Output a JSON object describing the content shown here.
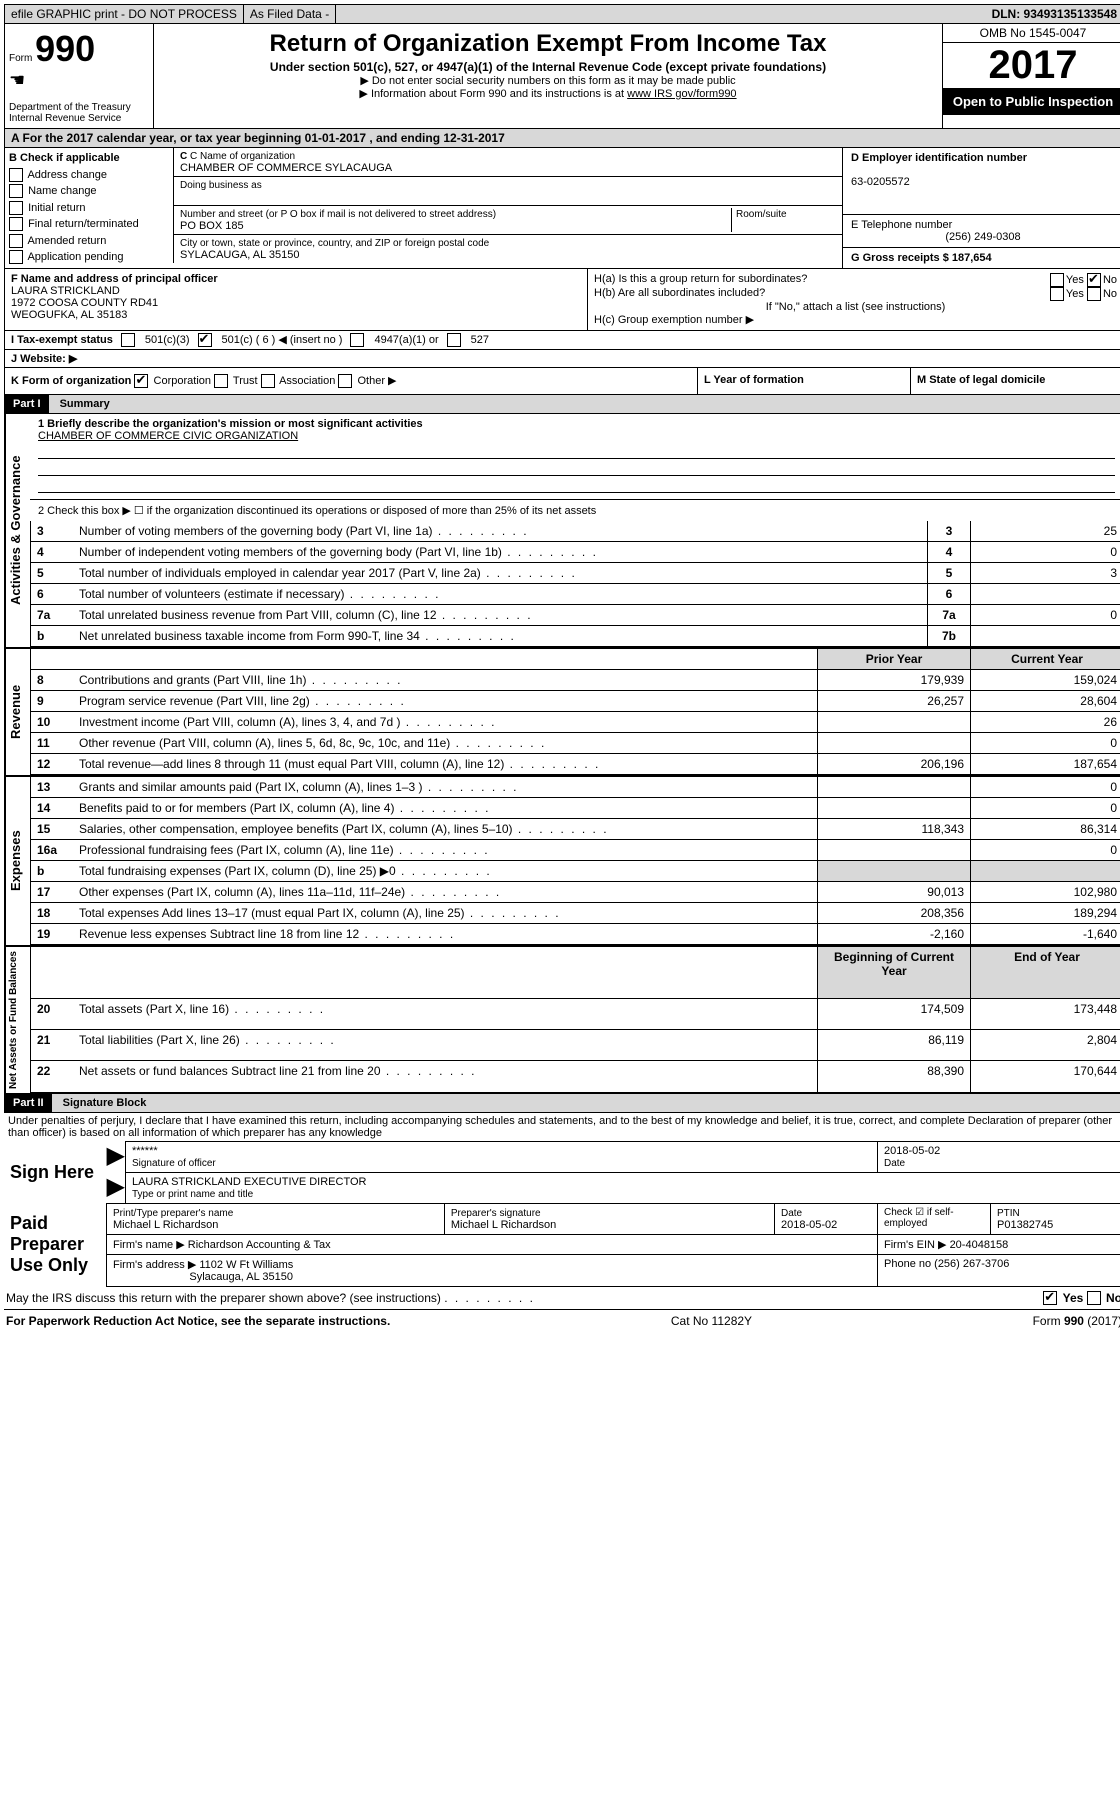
{
  "topbar": {
    "efile": "efile GRAPHIC print - DO NOT PROCESS",
    "asfiled": "As Filed Data -",
    "dln": "DLN: 93493135133548"
  },
  "header": {
    "form_label": "Form",
    "form_number": "990",
    "dept": "Department of the Treasury",
    "irs": "Internal Revenue Service",
    "title": "Return of Organization Exempt From Income Tax",
    "subtitle": "Under section 501(c), 527, or 4947(a)(1) of the Internal Revenue Code (except private foundations)",
    "note1": "▶ Do not enter social security numbers on this form as it may be made public",
    "note2": "▶ Information about Form 990 and its instructions is at ",
    "note2_link": "www IRS gov/form990",
    "omb": "OMB No 1545-0047",
    "year": "2017",
    "open": "Open to Public Inspection"
  },
  "row_a": "A  For the 2017 calendar year, or tax year beginning 01-01-2017  , and ending 12-31-2017",
  "section_b": {
    "b_label": "B Check if applicable",
    "checks": [
      "Address change",
      "Name change",
      "Initial return",
      "Final return/terminated",
      "Amended return",
      "Application pending"
    ],
    "c_label": "C Name of organization",
    "c_name": "CHAMBER OF COMMERCE SYLACAUGA",
    "dba_label": "Doing business as",
    "addr_label": "Number and street (or P O  box if mail is not delivered to street address)",
    "room_label": "Room/suite",
    "addr": "PO BOX 185",
    "city_label": "City or town, state or province, country, and ZIP or foreign postal code",
    "city": "SYLACAUGA, AL  35150",
    "d_label": "D Employer identification number",
    "d_val": "63-0205572",
    "e_label": "E Telephone number",
    "e_val": "(256) 249-0308",
    "g_label": "G Gross receipts $ 187,654"
  },
  "section_f": {
    "f_label": "F  Name and address of principal officer",
    "f_name": "LAURA STRICKLAND",
    "f_addr1": "1972 COOSA COUNTY RD41",
    "f_addr2": "WEOGUFKA, AL  35183",
    "ha": "H(a)  Is this a group return for subordinates?",
    "hb": "H(b)  Are all subordinates included?",
    "hb_note": "If \"No,\" attach a list  (see instructions)",
    "hc": "H(c)  Group exemption number ▶"
  },
  "row_i": {
    "label": "I  Tax-exempt status",
    "opt1": "501(c)(3)",
    "opt2": "501(c) ( 6 ) ◀ (insert no )",
    "opt3": "4947(a)(1) or",
    "opt4": "527"
  },
  "row_j": "J  Website: ▶",
  "row_k": {
    "k_label": "K Form of organization",
    "opts": [
      "Corporation",
      "Trust",
      "Association",
      "Other ▶"
    ],
    "l_label": "L Year of formation",
    "m_label": "M State of legal domicile"
  },
  "part1": {
    "header": "Part I",
    "title": "Summary",
    "line1_label": "1 Briefly describe the organization's mission or most significant activities",
    "line1_val": "CHAMBER OF COMMERCE CIVIC ORGANIZATION",
    "line2": "2  Check this box ▶ ☐ if the organization discontinued its operations or disposed of more than 25% of its net assets",
    "vert1": "Activities & Governance",
    "vert2": "Revenue",
    "vert3": "Expenses",
    "vert4": "Net Assets or Fund Balances",
    "prior_year": "Prior Year",
    "current_year": "Current Year",
    "begin_year": "Beginning of Current Year",
    "end_year": "End of Year",
    "rows_gov": [
      {
        "n": "3",
        "t": "Number of voting members of the governing body (Part VI, line 1a)",
        "box": "3",
        "v": "25"
      },
      {
        "n": "4",
        "t": "Number of independent voting members of the governing body (Part VI, line 1b)",
        "box": "4",
        "v": "0"
      },
      {
        "n": "5",
        "t": "Total number of individuals employed in calendar year 2017 (Part V, line 2a)",
        "box": "5",
        "v": "3"
      },
      {
        "n": "6",
        "t": "Total number of volunteers (estimate if necessary)",
        "box": "6",
        "v": ""
      },
      {
        "n": "7a",
        "t": "Total unrelated business revenue from Part VIII, column (C), line 12",
        "box": "7a",
        "v": "0"
      },
      {
        "n": "b",
        "t": "Net unrelated business taxable income from Form 990-T, line 34",
        "box": "7b",
        "v": ""
      }
    ],
    "rows_rev": [
      {
        "n": "8",
        "t": "Contributions and grants (Part VIII, line 1h)",
        "p": "179,939",
        "c": "159,024"
      },
      {
        "n": "9",
        "t": "Program service revenue (Part VIII, line 2g)",
        "p": "26,257",
        "c": "28,604"
      },
      {
        "n": "10",
        "t": "Investment income (Part VIII, column (A), lines 3, 4, and 7d )",
        "p": "",
        "c": "26"
      },
      {
        "n": "11",
        "t": "Other revenue (Part VIII, column (A), lines 5, 6d, 8c, 9c, 10c, and 11e)",
        "p": "",
        "c": "0"
      },
      {
        "n": "12",
        "t": "Total revenue—add lines 8 through 11 (must equal Part VIII, column (A), line 12)",
        "p": "206,196",
        "c": "187,654"
      }
    ],
    "rows_exp": [
      {
        "n": "13",
        "t": "Grants and similar amounts paid (Part IX, column (A), lines 1–3 )",
        "p": "",
        "c": "0"
      },
      {
        "n": "14",
        "t": "Benefits paid to or for members (Part IX, column (A), line 4)",
        "p": "",
        "c": "0"
      },
      {
        "n": "15",
        "t": "Salaries, other compensation, employee benefits (Part IX, column (A), lines 5–10)",
        "p": "118,343",
        "c": "86,314"
      },
      {
        "n": "16a",
        "t": "Professional fundraising fees (Part IX, column (A), line 11e)",
        "p": "",
        "c": "0"
      },
      {
        "n": "b",
        "t": "Total fundraising expenses (Part IX, column (D), line 25) ▶0",
        "p": "shaded",
        "c": "shaded"
      },
      {
        "n": "17",
        "t": "Other expenses (Part IX, column (A), lines 11a–11d, 11f–24e)",
        "p": "90,013",
        "c": "102,980"
      },
      {
        "n": "18",
        "t": "Total expenses  Add lines 13–17 (must equal Part IX, column (A), line 25)",
        "p": "208,356",
        "c": "189,294"
      },
      {
        "n": "19",
        "t": "Revenue less expenses  Subtract line 18 from line 12",
        "p": "-2,160",
        "c": "-1,640"
      }
    ],
    "rows_net": [
      {
        "n": "20",
        "t": "Total assets (Part X, line 16)",
        "p": "174,509",
        "c": "173,448"
      },
      {
        "n": "21",
        "t": "Total liabilities (Part X, line 26)",
        "p": "86,119",
        "c": "2,804"
      },
      {
        "n": "22",
        "t": "Net assets or fund balances  Subtract line 21 from line 20",
        "p": "88,390",
        "c": "170,644"
      }
    ]
  },
  "part2": {
    "header": "Part II",
    "title": "Signature Block",
    "declaration": "Under penalties of perjury, I declare that I have examined this return, including accompanying schedules and statements, and to the best of my knowledge and belief, it is true, correct, and complete  Declaration of preparer (other than officer) is based on all information of which preparer has any knowledge",
    "sign_here": "Sign Here",
    "sig_stars": "******",
    "sig_officer": "Signature of officer",
    "sig_date": "2018-05-02",
    "date_label": "Date",
    "officer_name": "LAURA STRICKLAND  EXECUTIVE DIRECTOR",
    "officer_type": "Type or print name and title",
    "paid_label": "Paid Preparer Use Only",
    "prep_name_label": "Print/Type preparer's name",
    "prep_name": "Michael L Richardson",
    "prep_sig_label": "Preparer's signature",
    "prep_sig": "Michael L Richardson",
    "prep_date_label": "Date",
    "prep_date": "2018-05-02",
    "check_label": "Check ☑ if self-employed",
    "ptin_label": "PTIN",
    "ptin": "P01382745",
    "firm_name_label": "Firm's name    ▶",
    "firm_name": "Richardson Accounting & Tax",
    "firm_ein_label": "Firm's EIN ▶",
    "firm_ein": "20-4048158",
    "firm_addr_label": "Firm's address ▶",
    "firm_addr": "1102 W Ft Williams",
    "firm_addr2": "Sylacauga, AL  35150",
    "phone_label": "Phone no  (256) 267-3706"
  },
  "footer": {
    "discuss": "May the IRS discuss this return with the preparer shown above? (see instructions)",
    "yes": "Yes",
    "no": "No",
    "paperwork": "For Paperwork Reduction Act Notice, see the separate instructions.",
    "cat": "Cat  No  11282Y",
    "form": "Form 990 (2017)"
  }
}
